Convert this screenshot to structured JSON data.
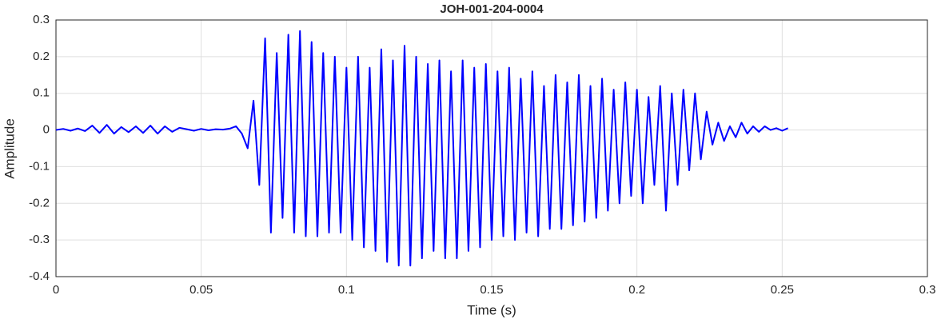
{
  "chart_data": {
    "type": "line",
    "title": "JOH-001-204-0004",
    "x_label": "Time (s)",
    "y_label": "Amplitude",
    "x": [
      0,
      0.0025,
      0.005,
      0.0075,
      0.01,
      0.0125,
      0.015,
      0.0175,
      0.02,
      0.0225,
      0.025,
      0.0275,
      0.03,
      0.0325,
      0.035,
      0.0375,
      0.04,
      0.0425,
      0.045,
      0.0475,
      0.05,
      0.0525,
      0.055,
      0.0575,
      0.06,
      0.062,
      0.064,
      0.066,
      0.068,
      0.07,
      0.072,
      0.074,
      0.076,
      0.078,
      0.08,
      0.082,
      0.084,
      0.086,
      0.088,
      0.09,
      0.092,
      0.094,
      0.096,
      0.098,
      0.1,
      0.102,
      0.104,
      0.106,
      0.108,
      0.11,
      0.112,
      0.114,
      0.116,
      0.118,
      0.12,
      0.122,
      0.124,
      0.126,
      0.128,
      0.13,
      0.132,
      0.134,
      0.136,
      0.138,
      0.14,
      0.142,
      0.144,
      0.146,
      0.148,
      0.15,
      0.152,
      0.154,
      0.156,
      0.158,
      0.16,
      0.162,
      0.164,
      0.166,
      0.168,
      0.17,
      0.172,
      0.174,
      0.176,
      0.178,
      0.18,
      0.182,
      0.184,
      0.186,
      0.188,
      0.19,
      0.192,
      0.194,
      0.196,
      0.198,
      0.2,
      0.202,
      0.204,
      0.206,
      0.208,
      0.21,
      0.212,
      0.214,
      0.216,
      0.218,
      0.22,
      0.222,
      0.224,
      0.226,
      0.228,
      0.23,
      0.232,
      0.234,
      0.236,
      0.238,
      0.24,
      0.242,
      0.244,
      0.246,
      0.248,
      0.25,
      0.252
    ],
    "series": [
      {
        "name": "Amplitude",
        "color": "#0000ff",
        "values": [
          0,
          0.003,
          -0.002,
          0.004,
          -0.003,
          0.012,
          -0.008,
          0.014,
          -0.01,
          0.008,
          -0.006,
          0.01,
          -0.008,
          0.012,
          -0.01,
          0.01,
          -0.005,
          0.006,
          0.002,
          -0.002,
          0.003,
          -0.001,
          0.002,
          0.001,
          0.004,
          0.01,
          -0.01,
          -0.05,
          0.08,
          -0.15,
          0.25,
          -0.28,
          0.21,
          -0.24,
          0.26,
          -0.28,
          0.27,
          -0.29,
          0.24,
          -0.29,
          0.21,
          -0.28,
          0.2,
          -0.28,
          0.17,
          -0.3,
          0.2,
          -0.32,
          0.17,
          -0.33,
          0.22,
          -0.36,
          0.19,
          -0.37,
          0.23,
          -0.37,
          0.2,
          -0.35,
          0.18,
          -0.33,
          0.19,
          -0.35,
          0.16,
          -0.35,
          0.19,
          -0.33,
          0.17,
          -0.32,
          0.18,
          -0.3,
          0.16,
          -0.29,
          0.17,
          -0.3,
          0.14,
          -0.28,
          0.16,
          -0.29,
          0.12,
          -0.27,
          0.15,
          -0.27,
          0.13,
          -0.26,
          0.15,
          -0.25,
          0.12,
          -0.24,
          0.14,
          -0.22,
          0.11,
          -0.2,
          0.13,
          -0.18,
          0.11,
          -0.2,
          0.09,
          -0.15,
          0.12,
          -0.22,
          0.1,
          -0.15,
          0.11,
          -0.11,
          0.1,
          -0.08,
          0.05,
          -0.04,
          0.02,
          -0.03,
          0.01,
          -0.02,
          0.02,
          -0.01,
          0.01,
          -0.005,
          0.01,
          0,
          0.005,
          -0.002,
          0.005
        ]
      }
    ],
    "xlim": [
      0,
      0.3
    ],
    "xticks": [
      0,
      0.05,
      0.1,
      0.15,
      0.2,
      0.25,
      0.3
    ],
    "ylim": [
      -0.4,
      0.3
    ],
    "yticks": [
      -0.4,
      -0.3,
      -0.2,
      -0.1,
      0,
      0.1,
      0.2,
      0.3
    ],
    "grid": true
  }
}
